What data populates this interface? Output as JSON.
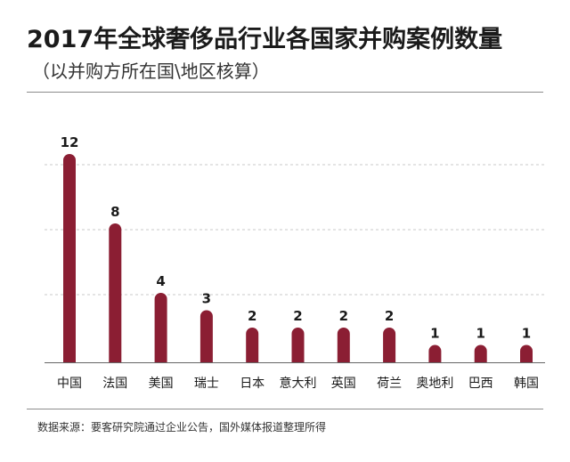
{
  "header": {
    "title": "2017年全球奢侈品行业各国家并购案例数量",
    "subtitle": "（以并购方所在国\\地区核算）"
  },
  "footer": {
    "source": "数据来源：要客研究院通过企业公告，国外媒体报道整理所得"
  },
  "colors": {
    "bar": "#8b1e33",
    "grid": "#c8c8c8",
    "axis": "#666666",
    "text": "#1a1a1a"
  },
  "chart_data": {
    "type": "bar",
    "title": "2017年全球奢侈品行业各国家并购案例数量",
    "subtitle": "（以并购方所在国\\地区核算）",
    "categories": [
      "中国",
      "法国",
      "美国",
      "瑞士",
      "日本",
      "意大利",
      "英国",
      "荷兰",
      "奥地利",
      "巴西",
      "韩国"
    ],
    "values": [
      12,
      8,
      4,
      3,
      2,
      2,
      2,
      2,
      1,
      1,
      1
    ],
    "ylim": [
      0,
      12
    ],
    "grid": true,
    "data_labels": true
  }
}
